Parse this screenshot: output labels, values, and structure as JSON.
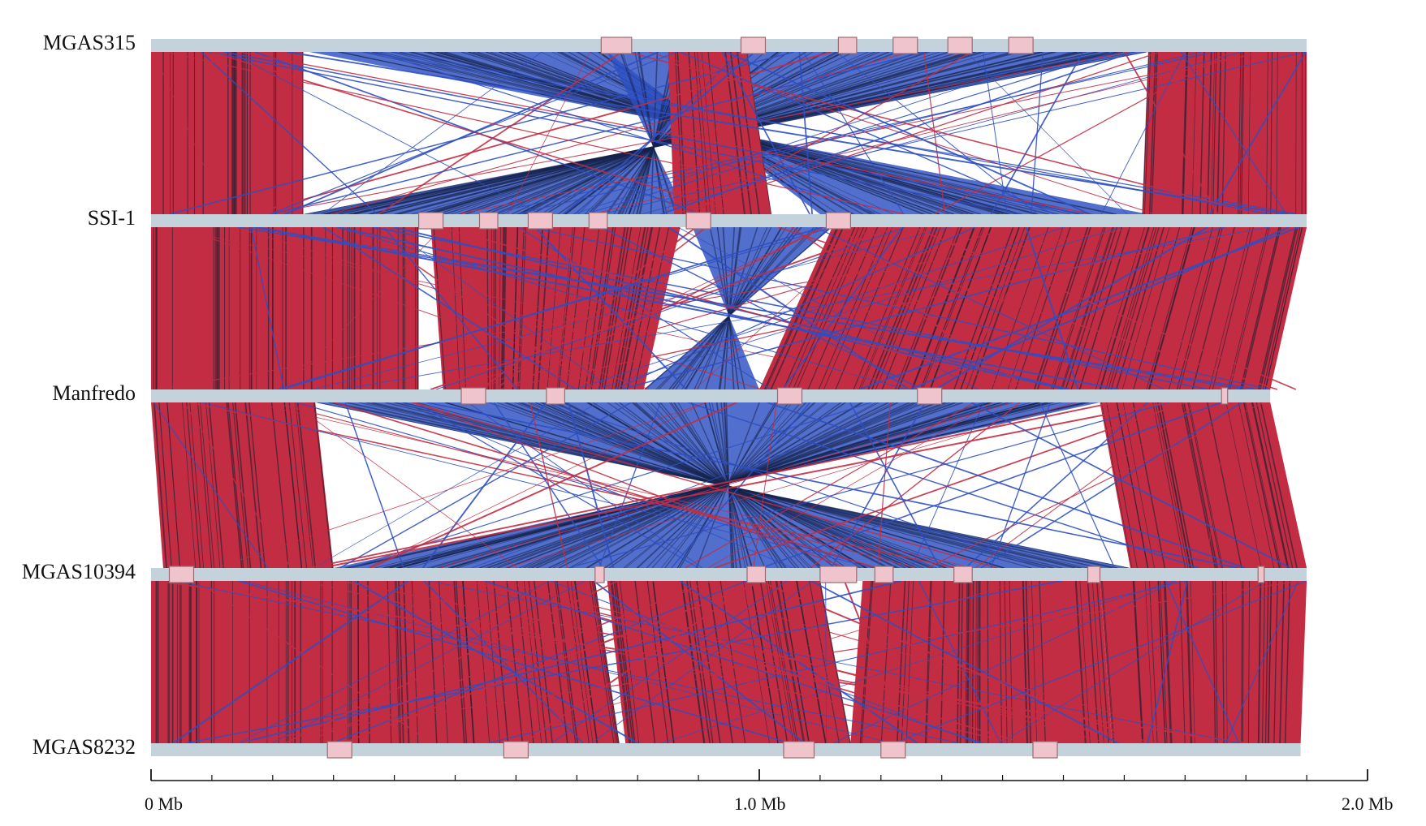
{
  "genomes": [
    {
      "name": "MGAS315",
      "length": 1.9,
      "mge": [
        [
          0.74,
          0.79
        ],
        [
          0.97,
          1.01
        ],
        [
          1.13,
          1.16
        ],
        [
          1.22,
          1.26
        ],
        [
          1.31,
          1.35
        ],
        [
          1.41,
          1.45
        ]
      ]
    },
    {
      "name": "SSI-1",
      "length": 1.9,
      "mge": [
        [
          0.44,
          0.48
        ],
        [
          0.54,
          0.57
        ],
        [
          0.62,
          0.66
        ],
        [
          0.72,
          0.75
        ],
        [
          0.88,
          0.92
        ],
        [
          1.11,
          1.15
        ]
      ]
    },
    {
      "name": "Manfredo",
      "length": 1.84,
      "mge": [
        [
          0.51,
          0.55
        ],
        [
          0.65,
          0.68
        ],
        [
          1.03,
          1.07
        ],
        [
          1.26,
          1.3
        ],
        [
          1.76,
          1.77
        ]
      ]
    },
    {
      "name": "MGAS10394",
      "length": 1.9,
      "mge": [
        [
          0.03,
          0.07
        ],
        [
          0.73,
          0.745
        ],
        [
          0.98,
          1.01
        ],
        [
          1.1,
          1.16
        ],
        [
          1.19,
          1.22
        ],
        [
          1.32,
          1.35
        ],
        [
          1.54,
          1.56
        ],
        [
          1.82,
          1.83
        ]
      ]
    },
    {
      "name": "MGAS8232",
      "length": 1.89,
      "mge": [
        [
          0.29,
          0.33
        ],
        [
          0.58,
          0.62
        ],
        [
          1.04,
          1.09
        ],
        [
          1.2,
          1.24
        ],
        [
          1.45,
          1.49
        ]
      ]
    }
  ],
  "axis": {
    "min": 0,
    "max": 2.0,
    "unit": "Mb",
    "labels": [
      {
        "value": 0,
        "text": "0 Mb"
      },
      {
        "value": 1.0,
        "text": "1.0 Mb"
      },
      {
        "value": 2.0,
        "text": "2.0 Mb"
      }
    ],
    "minor_step": 0.1
  },
  "colors": {
    "backbone": "#c4d2dc",
    "mge_fill": "#f0c4cc",
    "mge_stroke": "#9a6b72",
    "direct_match": "#c22d44",
    "inverted_match": "#2d4fc2",
    "dark_line": "#1a1d2e"
  },
  "blocks": [
    [
      {
        "t": "f",
        "a": [
          0.0,
          0.25
        ],
        "b": [
          0.0,
          0.25
        ]
      },
      {
        "t": "r",
        "a": [
          0.26,
          0.75
        ],
        "b": [
          1.1,
          1.64
        ]
      },
      {
        "t": "r",
        "a": [
          0.75,
          1.64
        ],
        "b": [
          0.25,
          0.88
        ]
      },
      {
        "t": "f",
        "a": [
          0.85,
          0.98
        ],
        "b": [
          0.86,
          1.02
        ]
      },
      {
        "t": "f",
        "a": [
          1.64,
          1.9
        ],
        "b": [
          1.63,
          1.9
        ]
      }
    ],
    [
      {
        "t": "f",
        "a": [
          0.0,
          0.44
        ],
        "b": [
          0.0,
          0.44
        ]
      },
      {
        "t": "f",
        "a": [
          0.46,
          0.87
        ],
        "b": [
          0.48,
          0.81
        ]
      },
      {
        "t": "r",
        "a": [
          0.89,
          1.12
        ],
        "b": [
          0.81,
          1.0
        ]
      },
      {
        "t": "f",
        "a": [
          1.12,
          1.9
        ],
        "b": [
          1.0,
          1.84
        ]
      }
    ],
    [
      {
        "t": "f",
        "a": [
          0.0,
          0.27
        ],
        "b": [
          0.02,
          0.3
        ]
      },
      {
        "t": "r",
        "a": [
          0.27,
          0.95
        ],
        "b": [
          0.95,
          1.61
        ]
      },
      {
        "t": "r",
        "a": [
          0.95,
          1.56
        ],
        "b": [
          0.3,
          0.95
        ]
      },
      {
        "t": "f",
        "a": [
          1.56,
          1.84
        ],
        "b": [
          1.61,
          1.9
        ]
      }
    ],
    [
      {
        "t": "f",
        "a": [
          0.0,
          0.33
        ],
        "b": [
          0.0,
          0.33
        ]
      },
      {
        "t": "f",
        "a": [
          0.33,
          0.73
        ],
        "b": [
          0.33,
          0.77
        ]
      },
      {
        "t": "f",
        "a": [
          0.75,
          1.1
        ],
        "b": [
          0.78,
          1.15
        ]
      },
      {
        "t": "f",
        "a": [
          1.17,
          1.56
        ],
        "b": [
          1.15,
          1.58
        ]
      },
      {
        "t": "f",
        "a": [
          1.56,
          1.9
        ],
        "b": [
          1.58,
          1.89
        ]
      }
    ]
  ]
}
